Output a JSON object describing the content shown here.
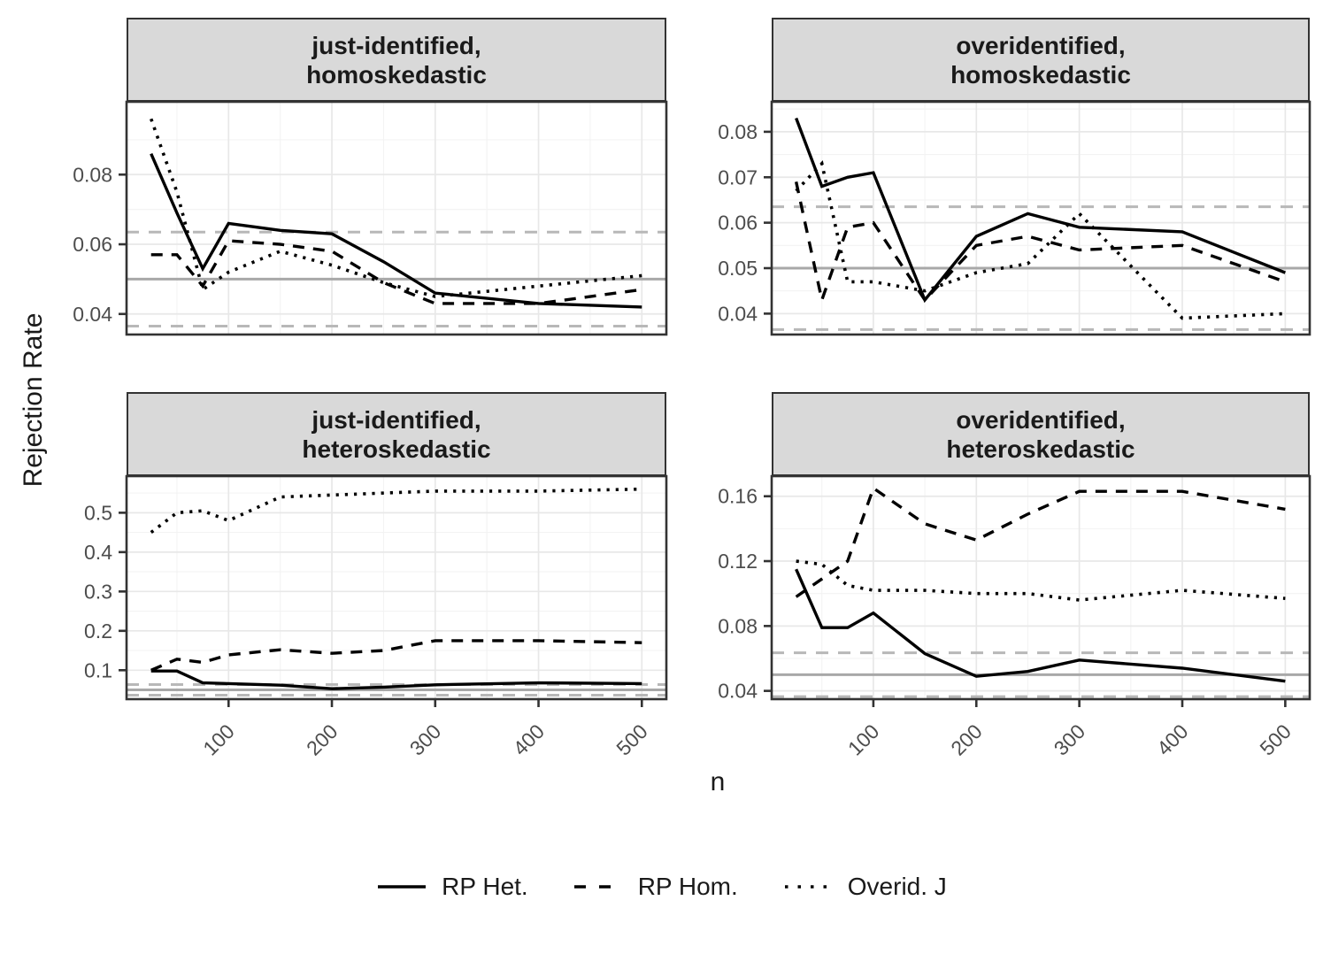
{
  "figure": {
    "colors": {
      "line": "#000000",
      "strip_bg": "#d9d9d9",
      "strip_border": "#333333",
      "panel_border": "#333333",
      "panel_bg": "#ffffff",
      "grid_major": "#e8e8e8",
      "grid_minor": "#f3f3f3",
      "ref_solid": "#a8a8a8",
      "ref_dashed": "#b8b8b8",
      "tick_label": "#4d4d4d",
      "text": "#1a1a1a",
      "background": "#ffffff"
    }
  },
  "legend": {
    "items": [
      {
        "key": "rp_het",
        "label": "RP Het."
      },
      {
        "key": "rp_hom",
        "label": "RP Hom."
      },
      {
        "key": "overid_j",
        "label": "Overid. J"
      }
    ]
  },
  "chart_data": {
    "type": "line",
    "x_label": "n",
    "y_label": "Rejection Rate",
    "x": [
      25,
      50,
      75,
      100,
      150,
      200,
      250,
      300,
      400,
      500
    ],
    "xlim": [
      1.25,
      523.75
    ],
    "x_major_ticks": [
      100,
      200,
      300,
      400,
      500
    ],
    "x_tick_labels": [
      "100",
      "200",
      "300",
      "400",
      "500"
    ],
    "x_minor_ticks": [
      50,
      150,
      250,
      350,
      450
    ],
    "reference_lines": {
      "solid_gray": 0.05,
      "dashed_gray": [
        0.0365,
        0.0635
      ]
    },
    "panels": [
      {
        "key": "tl",
        "title_line1": "just-identified,",
        "title_line2": "homoskedastic",
        "ylim": [
          0.0341,
          0.1009
        ],
        "y_major_ticks": [
          0.04,
          0.06,
          0.08
        ],
        "y_tick_labels": [
          "0.04",
          "0.06",
          "0.08"
        ],
        "y_minor_ticks": [
          0.05,
          0.07,
          0.09
        ],
        "series": {
          "rp_het": [
            0.086,
            0.069,
            0.053,
            0.066,
            0.064,
            0.063,
            0.055,
            0.046,
            0.043,
            0.042
          ],
          "rp_hom": [
            0.057,
            0.057,
            0.048,
            0.061,
            0.06,
            0.058,
            0.049,
            0.043,
            0.043,
            0.047
          ],
          "overid_j": [
            0.096,
            0.075,
            0.047,
            0.052,
            0.058,
            0.054,
            0.049,
            0.045,
            0.048,
            0.051
          ]
        }
      },
      {
        "key": "tr",
        "title_line1": "overidentified,",
        "title_line2": "homoskedastic",
        "ylim": [
          0.0354,
          0.0866
        ],
        "y_major_ticks": [
          0.04,
          0.05,
          0.06,
          0.07,
          0.08
        ],
        "y_tick_labels": [
          "0.04",
          "0.05",
          "0.06",
          "0.07",
          "0.08"
        ],
        "y_minor_ticks": [
          0.045,
          0.055,
          0.065,
          0.075,
          0.085
        ],
        "series": {
          "rp_het": [
            0.083,
            0.068,
            0.07,
            0.071,
            0.043,
            0.057,
            0.062,
            0.059,
            0.058,
            0.049
          ],
          "rp_hom": [
            0.069,
            0.043,
            0.059,
            0.06,
            0.043,
            0.055,
            0.057,
            0.054,
            0.055,
            0.047
          ],
          "overid_j": [
            0.067,
            0.073,
            0.047,
            0.047,
            0.045,
            0.049,
            0.051,
            0.062,
            0.039,
            0.04
          ]
        }
      },
      {
        "key": "bl",
        "title_line1": "just-identified,",
        "title_line2": "heteroskedastic",
        "ylim": [
          0.0265,
          0.593
        ],
        "y_major_ticks": [
          0.1,
          0.2,
          0.3,
          0.4,
          0.5
        ],
        "y_tick_labels": [
          "0.1",
          "0.2",
          "0.3",
          "0.4",
          "0.5"
        ],
        "y_minor_ticks": [
          0.05,
          0.15,
          0.25,
          0.35,
          0.45,
          0.55
        ],
        "series": {
          "rp_het": [
            0.098,
            0.098,
            0.068,
            0.066,
            0.062,
            0.053,
            0.057,
            0.063,
            0.068,
            0.066
          ],
          "rp_hom": [
            0.1,
            0.128,
            0.12,
            0.139,
            0.152,
            0.143,
            0.15,
            0.175,
            0.175,
            0.17
          ],
          "overid_j": [
            0.45,
            0.5,
            0.505,
            0.48,
            0.54,
            0.545,
            0.55,
            0.555,
            0.555,
            0.56
          ]
        }
      },
      {
        "key": "br",
        "title_line1": "overidentified,",
        "title_line2": "heteroskedastic",
        "ylim": [
          0.0349,
          0.1724
        ],
        "y_major_ticks": [
          0.04,
          0.08,
          0.12,
          0.16
        ],
        "y_tick_labels": [
          "0.04",
          "0.08",
          "0.12",
          "0.16"
        ],
        "y_minor_ticks": [
          0.06,
          0.1,
          0.14
        ],
        "series": {
          "rp_het": [
            0.115,
            0.079,
            0.079,
            0.088,
            0.063,
            0.049,
            0.052,
            0.059,
            0.054,
            0.046
          ],
          "rp_hom": [
            0.098,
            0.109,
            0.12,
            0.165,
            0.143,
            0.133,
            0.149,
            0.163,
            0.163,
            0.152
          ],
          "overid_j": [
            0.12,
            0.118,
            0.105,
            0.102,
            0.102,
            0.1,
            0.1,
            0.096,
            0.102,
            0.097
          ]
        }
      }
    ]
  }
}
